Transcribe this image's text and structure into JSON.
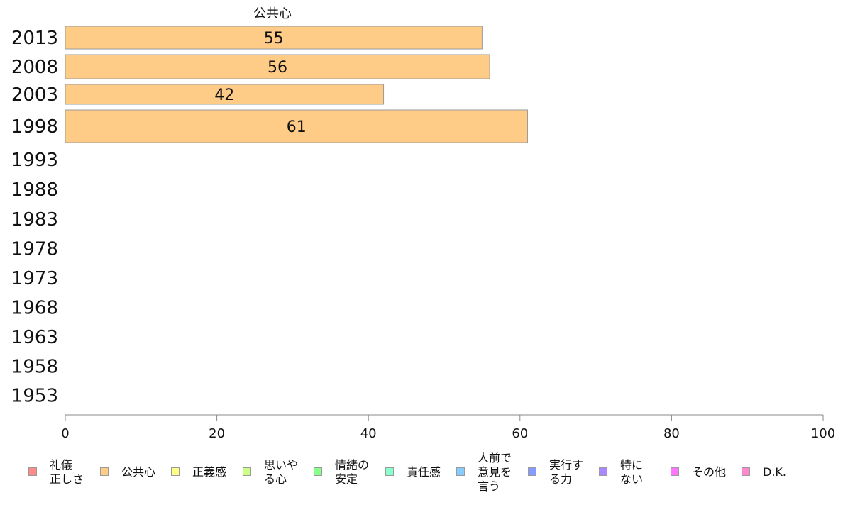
{
  "chart_data": {
    "type": "bar",
    "orientation": "horizontal",
    "title": "公共心",
    "categories": [
      "2013",
      "2008",
      "2003",
      "1998",
      "1993",
      "1988",
      "1983",
      "1978",
      "1973",
      "1968",
      "1963",
      "1958",
      "1953"
    ],
    "series": [
      {
        "name": "公共心",
        "values": [
          55,
          56,
          42,
          61,
          null,
          null,
          null,
          null,
          null,
          null,
          null,
          null,
          null
        ],
        "color": "#ffcc88"
      }
    ],
    "xlim": [
      0,
      100
    ],
    "xticks": [
      "0",
      "20",
      "40",
      "60",
      "80",
      "100"
    ],
    "grid": false,
    "legend_position": "bottom"
  },
  "legend": [
    {
      "label": "礼儀\n正しさ",
      "color": "#ff8a8a"
    },
    {
      "label": "公共心",
      "color": "#ffcc88"
    },
    {
      "label": "正義感",
      "color": "#ffff88"
    },
    {
      "label": "思いや\nる心",
      "color": "#ccff88"
    },
    {
      "label": "情緒の\n安定",
      "color": "#88ff88"
    },
    {
      "label": "責任感",
      "color": "#88ffcc"
    },
    {
      "label": "人前で\n意見を\n言う",
      "color": "#88ccff"
    },
    {
      "label": "実行す\nる力",
      "color": "#8899ff"
    },
    {
      "label": "特に\nない",
      "color": "#aa88ff"
    },
    {
      "label": "その他",
      "color": "#ff77ff"
    },
    {
      "label": "D.K.",
      "color": "#ff88cc"
    }
  ]
}
